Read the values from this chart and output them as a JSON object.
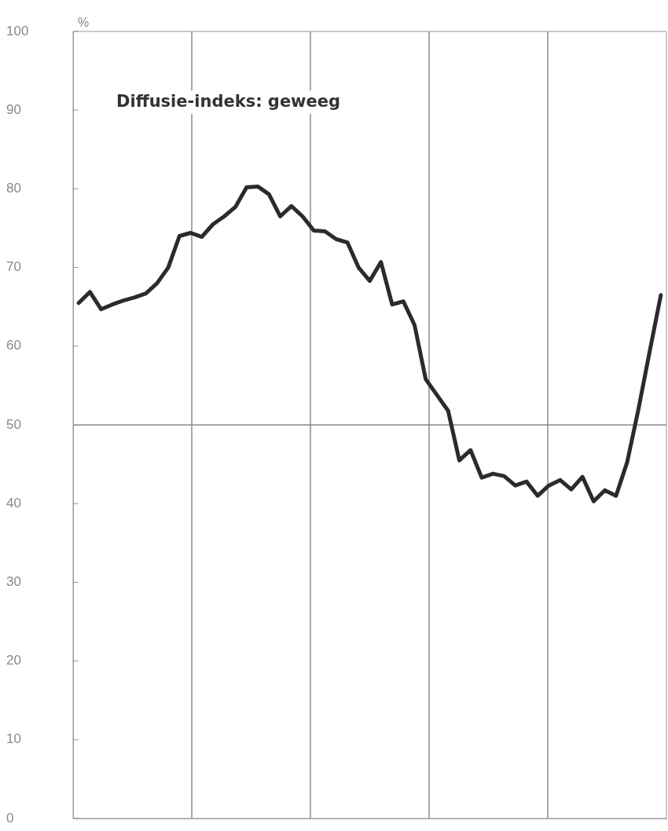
{
  "chart_data": {
    "type": "line",
    "title": "Diffusie-indeks: geweeg",
    "ylabel": "%",
    "categories": [
      null,
      null,
      null,
      null,
      null,
      null,
      null,
      null,
      null,
      null,
      null,
      null,
      null,
      null,
      null,
      null,
      null,
      null,
      null,
      null,
      null,
      null,
      null,
      null,
      null,
      null,
      null,
      null,
      null,
      null,
      null,
      null,
      null,
      null,
      null,
      null,
      null,
      null,
      null,
      null,
      null,
      null,
      null,
      null,
      null,
      null,
      null,
      null,
      null,
      null,
      null,
      null,
      null
    ],
    "series": [
      {
        "color": "#2b2b2b",
        "values": [
          65.5,
          66.9,
          64.7,
          65.3,
          65.8,
          66.2,
          66.7,
          68,
          70,
          74,
          74.4,
          73.9,
          75.5,
          76.5,
          77.7,
          80.2,
          80.3,
          79.3,
          76.5,
          77.8,
          76.5,
          74.7,
          74.6,
          73.6,
          73.2,
          70,
          68.3,
          70.7,
          65.3,
          65.7,
          62.7,
          55.8,
          53.8,
          51.8,
          45.5,
          46.8,
          43.3,
          43.8,
          43.5,
          42.3,
          42.8,
          41,
          42.3,
          43,
          41.8,
          43.4,
          40.3,
          41.7,
          41,
          45.3,
          52,
          59.3,
          66.5
        ]
      }
    ],
    "ylim": [
      0,
      100
    ],
    "yticks": [
      0,
      10,
      20,
      30,
      40,
      50,
      60,
      70,
      80,
      90,
      100
    ],
    "grid": "x",
    "tick_labels": "y",
    "legend": false,
    "marker": "none",
    "line_style": "solid",
    "ref_lines": [
      {
        "axis": "y",
        "value": 50,
        "color": "#8a8a8a"
      }
    ]
  }
}
